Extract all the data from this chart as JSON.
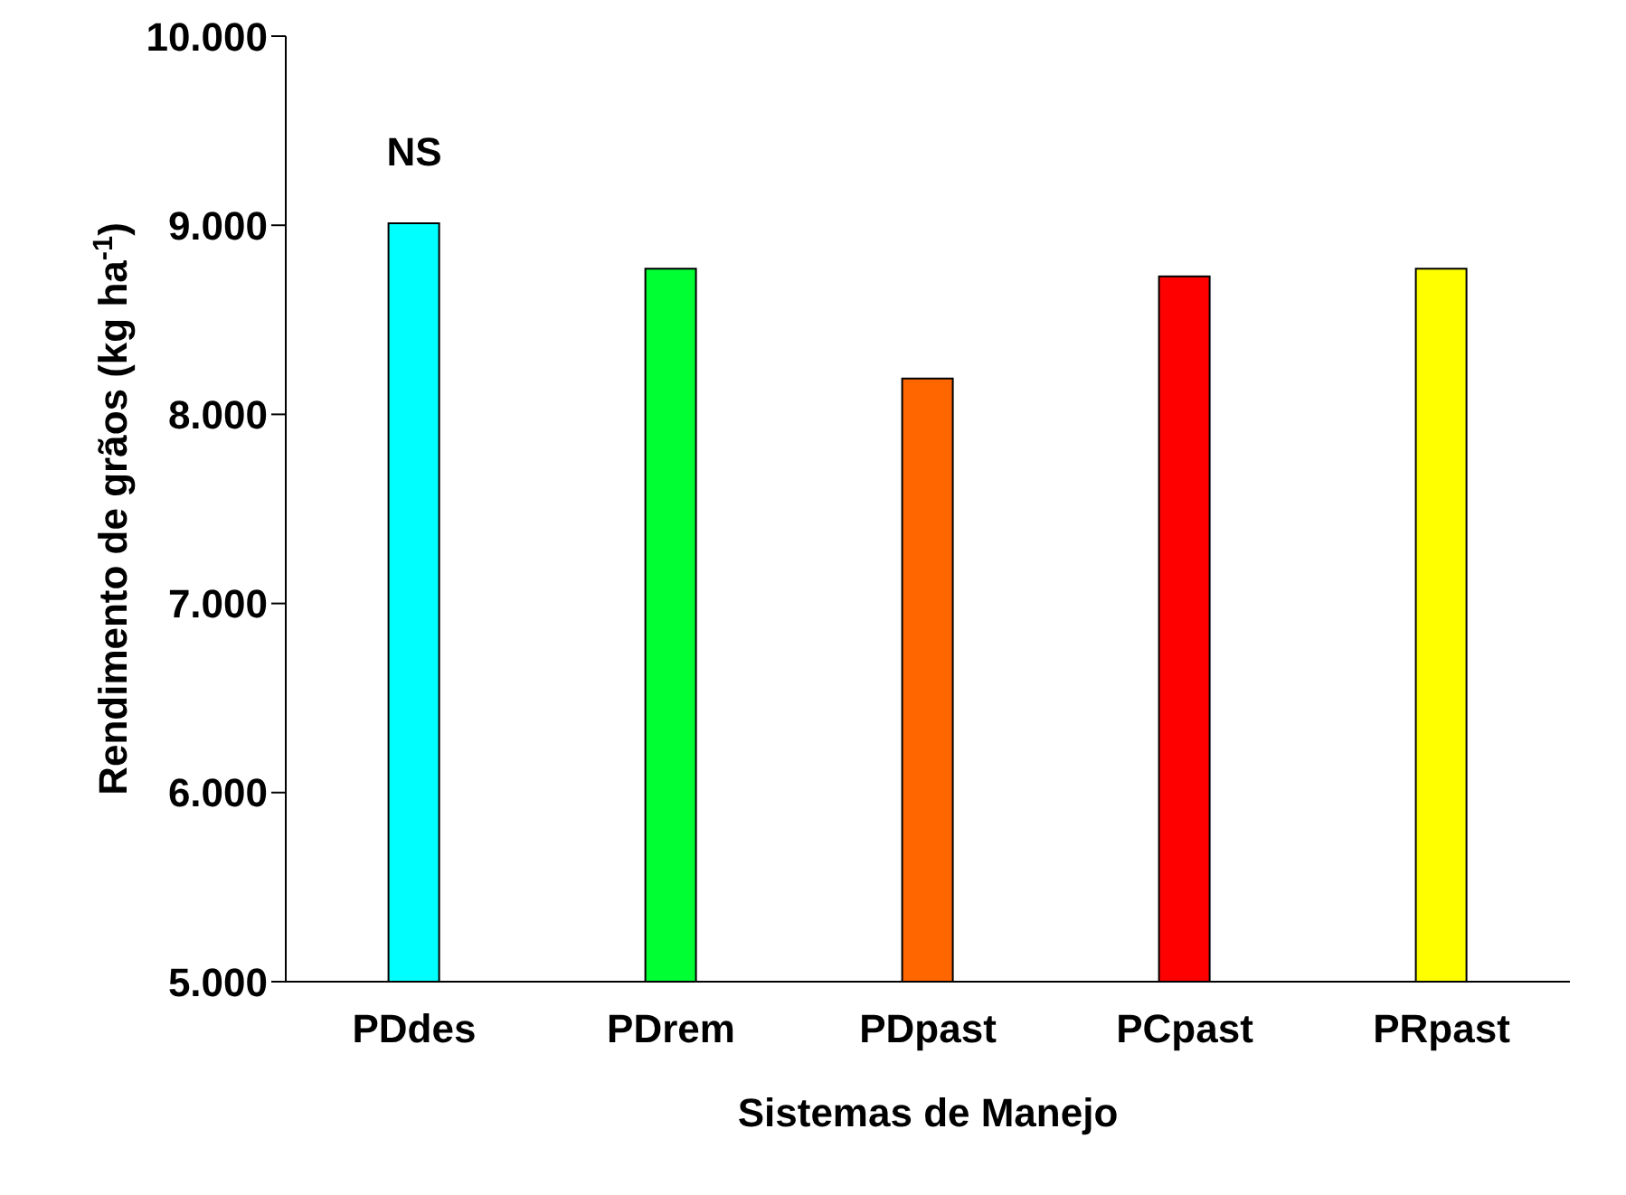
{
  "chart_data": {
    "type": "bar",
    "xlabel": "Sistemas de Manejo",
    "ylabel": "Rendimento de grãos (kg ha$^{-1}$)",
    "categories": [
      "PDdes",
      "PDrem",
      "PDpast",
      "PCpast",
      "PRpast"
    ],
    "values": [
      9010,
      8770,
      8190,
      8730,
      8770
    ],
    "colors": [
      "#00ffff",
      "#00ff33",
      "#ff6600",
      "#ff0000",
      "#ffff00"
    ],
    "ylim": [
      5000,
      10000
    ],
    "yticks": [
      {
        "value": 5000,
        "label": "5.000"
      },
      {
        "value": 6000,
        "label": "6.000"
      },
      {
        "value": 7000,
        "label": "7.000"
      },
      {
        "value": 8000,
        "label": "8.000"
      },
      {
        "value": 9000,
        "label": "9.000"
      },
      {
        "value": 10000,
        "label": "10.000"
      }
    ],
    "annotations": [
      "NS"
    ],
    "grid": false,
    "legend": false
  }
}
